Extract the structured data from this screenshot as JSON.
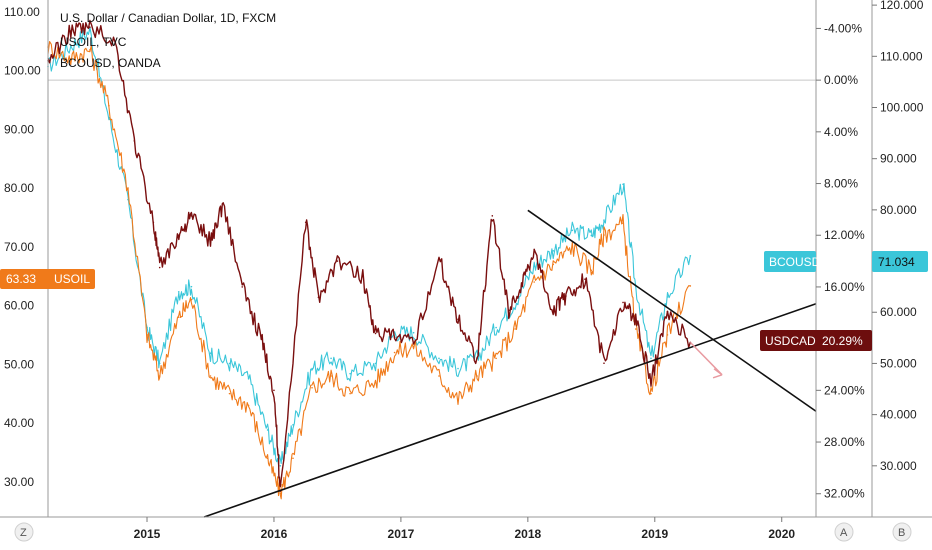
{
  "chart_data": {
    "type": "line",
    "title": "U.S. Dollar / Canadian Dollar, 1D, FXCM",
    "legend": [
      "USOIL, TVC",
      "BCOUSD, OANDA"
    ],
    "x_ticks": [
      "2015",
      "2016",
      "2017",
      "2018",
      "2019",
      "2020"
    ],
    "left_axis": {
      "ticks": [
        "110.00",
        "100.00",
        "90.00",
        "80.00",
        "70.00",
        "60.00",
        "50.00",
        "40.00",
        "30.00"
      ],
      "ylim": [
        24,
        112
      ]
    },
    "pct_axis": {
      "ticks": [
        "-4.00%",
        "0.00%",
        "4.00%",
        "8.00%",
        "12.00%",
        "16.00%",
        "20.00%",
        "24.00%",
        "28.00%",
        "32.00%"
      ],
      "ylim": [
        -6.2,
        33.8
      ]
    },
    "right_axis": {
      "ticks": [
        "120.000",
        "110.000",
        "100.000",
        "90.000",
        "80.000",
        "70.000",
        "60.000",
        "50.000",
        "40.000",
        "30.000"
      ],
      "ylim": [
        20,
        121
      ]
    },
    "series": [
      {
        "name": "USDCAD",
        "axis": "pct",
        "color": "#7a0f0f",
        "x": [
          2014.22,
          2014.4,
          2014.55,
          2014.75,
          2014.9,
          2015.05,
          2015.1,
          2015.25,
          2015.35,
          2015.5,
          2015.6,
          2015.75,
          2015.9,
          2016.0,
          2016.05,
          2016.25,
          2016.35,
          2016.5,
          2016.7,
          2016.8,
          2016.95,
          2017.1,
          2017.3,
          2017.45,
          2017.6,
          2017.72,
          2017.85,
          2017.95,
          2018.05,
          2018.2,
          2018.3,
          2018.45,
          2018.6,
          2018.75,
          2018.85,
          2018.97,
          2019.1,
          2019.28
        ],
        "values": [
          -1.5,
          -3.8,
          -4.1,
          -2.9,
          4.7,
          11,
          14.5,
          12,
          10.5,
          12.5,
          9.5,
          16,
          20,
          24,
          31.8,
          11,
          16.8,
          14,
          15.2,
          19.6,
          19.9,
          20.4,
          13.8,
          18.5,
          21.5,
          10.5,
          17.8,
          15.9,
          13.1,
          17.9,
          16.7,
          15.4,
          21.9,
          17.2,
          18.5,
          23.4,
          17.9,
          20.29
        ]
      },
      {
        "name": "USOIL",
        "axis": "left",
        "color": "#f07a1a",
        "x": [
          2014.22,
          2014.4,
          2014.55,
          2014.7,
          2014.85,
          2015.0,
          2015.1,
          2015.25,
          2015.35,
          2015.5,
          2015.65,
          2015.8,
          2015.95,
          2016.05,
          2016.15,
          2016.3,
          2016.45,
          2016.6,
          2016.8,
          2016.95,
          2017.1,
          2017.3,
          2017.45,
          2017.6,
          2017.75,
          2017.9,
          2018.05,
          2018.2,
          2018.35,
          2018.5,
          2018.6,
          2018.75,
          2018.85,
          2018.97,
          2019.1,
          2019.28
        ],
        "values": [
          104,
          102,
          103.5,
          94,
          80,
          55,
          48,
          58,
          61,
          48,
          45,
          43,
          34,
          28,
          34,
          46,
          48,
          45,
          47,
          52,
          53,
          48,
          44,
          48,
          51,
          56,
          64,
          67,
          70,
          66,
          72,
          74,
          56,
          45,
          55,
          63.33
        ]
      },
      {
        "name": "BCOUSD",
        "axis": "right",
        "color": "#3bc6d9",
        "x": [
          2014.22,
          2014.4,
          2014.55,
          2014.7,
          2014.85,
          2015.0,
          2015.1,
          2015.25,
          2015.35,
          2015.5,
          2015.65,
          2015.8,
          2015.95,
          2016.05,
          2016.15,
          2016.3,
          2016.45,
          2016.6,
          2016.8,
          2016.95,
          2017.1,
          2017.3,
          2017.45,
          2017.6,
          2017.75,
          2017.9,
          2018.05,
          2018.2,
          2018.35,
          2018.5,
          2018.6,
          2018.75,
          2018.85,
          2018.97,
          2019.1,
          2019.28
        ],
        "values": [
          108,
          112,
          115,
          98,
          82,
          57,
          50,
          64,
          65,
          52,
          50,
          47,
          37,
          30,
          38,
          49,
          51,
          48,
          50,
          56,
          56,
          51,
          49,
          51,
          57,
          62,
          69,
          72,
          76,
          75,
          78,
          85,
          65,
          51,
          63,
          71.034
        ]
      }
    ],
    "trendlines": [
      {
        "x": [
          2015.45,
          2020.27
        ],
        "left_values": [
          24,
          60.3
        ],
        "color": "#111111"
      },
      {
        "x": [
          2018.0,
          2020.27
        ],
        "left_values": [
          76.2,
          42
        ],
        "color": "#111111"
      }
    ],
    "projection_arrow": {
      "x": [
        2019.28,
        2019.53
      ],
      "pct_values": [
        20.29,
        22.8
      ],
      "color": "#e89aa0"
    },
    "hline_pct": 0.0
  },
  "tags": {
    "usoil_value": "63.33",
    "usoil_label": "USOIL",
    "bcousd_label": "BCOUSD",
    "bcousd_value": "71.034",
    "usdcad_label": "USDCAD",
    "usdcad_value": "20.29%"
  },
  "corners": {
    "bottom_left": "Z",
    "bottom_mid": "A",
    "bottom_right": "B"
  },
  "colors": {
    "usdcad_tag": "#6d0e0e",
    "usoil_tag": "#f07a1a",
    "bcousd_tag": "#3bc6d9"
  }
}
